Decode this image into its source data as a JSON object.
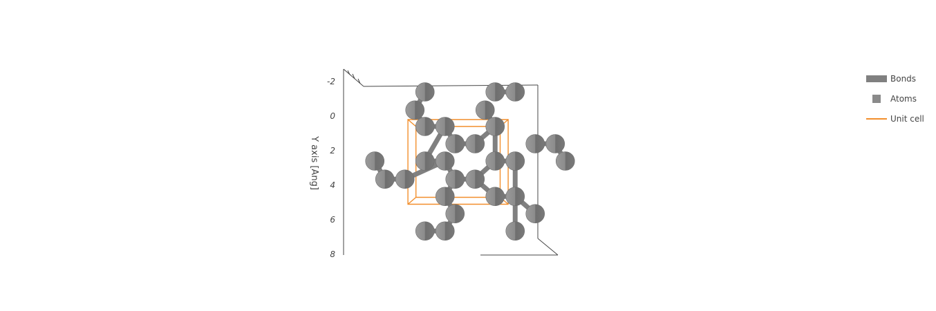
{
  "chart_data": {
    "type": "scatter3d",
    "yaxis": {
      "title": "Y axis [Ang]",
      "ticks": [
        -2,
        0,
        2,
        4,
        6,
        8
      ],
      "tick_labels": [
        "-2",
        "0",
        "2",
        "4",
        "6",
        "8"
      ]
    },
    "legend": {
      "placement": "top-right",
      "entries": [
        {
          "name": "Bonds",
          "color": "#808080"
        },
        {
          "name": "Atoms",
          "color": "#808080"
        },
        {
          "name": "Unit cell",
          "color": "#f28e2b"
        }
      ]
    },
    "atoms": [
      {
        "x": 0.75,
        "y": -1.4
      },
      {
        "x": 4.25,
        "y": -1.4
      },
      {
        "x": 5.25,
        "y": -1.4
      },
      {
        "x": 0.25,
        "y": -0.35
      },
      {
        "x": 3.75,
        "y": -0.35
      },
      {
        "x": 0.75,
        "y": 0.6
      },
      {
        "x": 1.75,
        "y": 0.6
      },
      {
        "x": 4.25,
        "y": 0.6
      },
      {
        "x": 2.25,
        "y": 1.6
      },
      {
        "x": 3.25,
        "y": 1.6
      },
      {
        "x": 6.25,
        "y": 1.6
      },
      {
        "x": 7.25,
        "y": 1.6
      },
      {
        "x": -1.75,
        "y": 2.6
      },
      {
        "x": 0.75,
        "y": 2.6
      },
      {
        "x": 1.75,
        "y": 2.6
      },
      {
        "x": 4.25,
        "y": 2.6
      },
      {
        "x": 5.25,
        "y": 2.6
      },
      {
        "x": 7.75,
        "y": 2.6
      },
      {
        "x": -1.25,
        "y": 3.65
      },
      {
        "x": -0.25,
        "y": 3.65
      },
      {
        "x": 2.25,
        "y": 3.65
      },
      {
        "x": 3.25,
        "y": 3.65
      },
      {
        "x": 1.75,
        "y": 4.65
      },
      {
        "x": 4.25,
        "y": 4.65
      },
      {
        "x": 5.25,
        "y": 4.65
      },
      {
        "x": 2.25,
        "y": 5.65
      },
      {
        "x": 6.25,
        "y": 5.65
      },
      {
        "x": 0.75,
        "y": 6.65
      },
      {
        "x": 1.75,
        "y": 6.65
      },
      {
        "x": 5.25,
        "y": 6.65
      }
    ],
    "bonds": [
      [
        1,
        2
      ],
      [
        3,
        5
      ],
      [
        4,
        7
      ],
      [
        5,
        6
      ],
      [
        6,
        8
      ],
      [
        8,
        9
      ],
      [
        9,
        7
      ],
      [
        10,
        11
      ],
      [
        11,
        17
      ],
      [
        12,
        18
      ],
      [
        18,
        19
      ],
      [
        19,
        14
      ],
      [
        13,
        14
      ],
      [
        14,
        20
      ],
      [
        20,
        21
      ],
      [
        21,
        15
      ],
      [
        15,
        16
      ],
      [
        20,
        22
      ],
      [
        21,
        23
      ],
      [
        23,
        24
      ],
      [
        22,
        25
      ],
      [
        24,
        26
      ],
      [
        24,
        29
      ],
      [
        25,
        28
      ],
      [
        27,
        28
      ],
      [
        0,
        3
      ],
      [
        6,
        13
      ],
      [
        15,
        7
      ],
      [
        16,
        24
      ]
    ],
    "unit_cell": {
      "front": [
        [
          -0.1,
          0.2
        ],
        [
          4.9,
          0.2
        ],
        [
          4.9,
          5.1
        ],
        [
          -0.1,
          5.1
        ]
      ],
      "back": [
        [
          0.3,
          0.6
        ],
        [
          4.5,
          0.6
        ],
        [
          4.5,
          4.7
        ],
        [
          0.3,
          4.7
        ]
      ]
    }
  }
}
